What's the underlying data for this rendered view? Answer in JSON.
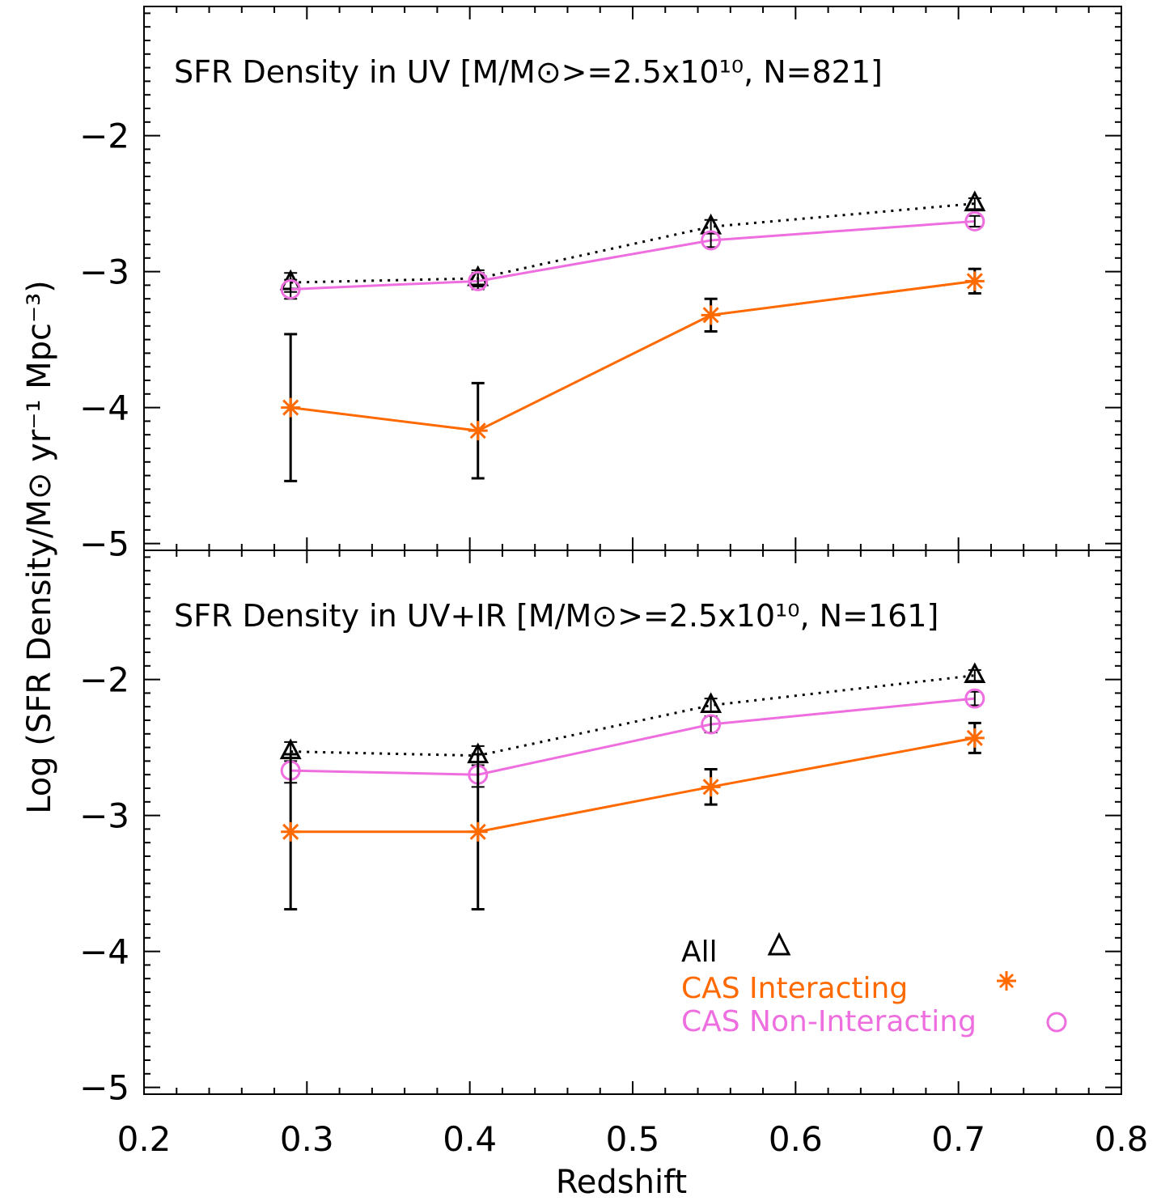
{
  "figure": {
    "xlabel": "Redshift",
    "ylabel": "Log (SFR Density/M⊙ yr⁻¹ Mpc⁻³)"
  },
  "legend": {
    "placement": "bottom-right of lower panel",
    "entries": [
      {
        "label": "All",
        "color": "#000000",
        "marker": "triangle-icon"
      },
      {
        "label": "CAS Interacting",
        "color": "#ff6a00",
        "marker": "asterisk-icon"
      },
      {
        "label": "CAS Non-Interacting",
        "color": "#ee6ee0",
        "marker": "circle-icon"
      }
    ]
  },
  "chart_data": [
    {
      "type": "line",
      "title": "SFR Density in UV [M/M⊙>=2.5x10¹⁰, N=821]",
      "xlabel": "Redshift",
      "ylabel": "Log (SFR Density/M⊙ yr⁻¹ Mpc⁻³)",
      "xlim": [
        0.2,
        0.8
      ],
      "ylim": [
        -5.05,
        -1.05
      ],
      "xticks": [
        "0.2",
        "0.3",
        "0.4",
        "0.5",
        "0.6",
        "0.7",
        "0.8"
      ],
      "yticks": [
        "-2",
        "-3",
        "-4",
        "-5"
      ],
      "x": [
        0.29,
        0.405,
        0.548,
        0.71
      ],
      "series": [
        {
          "name": "All",
          "color": "#000000",
          "style": "dotted",
          "marker": "triangle",
          "values": [
            -3.08,
            -3.05,
            -2.67,
            -2.5
          ],
          "err": [
            0.07,
            0.06,
            0.05,
            0.04
          ]
        },
        {
          "name": "CAS Non-Interacting",
          "color": "#ee6ee0",
          "style": "solid",
          "marker": "circle",
          "values": [
            -3.13,
            -3.07,
            -2.77,
            -2.63
          ],
          "err": [
            0.07,
            0.06,
            0.05,
            0.04
          ]
        },
        {
          "name": "CAS Interacting",
          "color": "#ff6a00",
          "style": "solid",
          "marker": "asterisk",
          "values": [
            -4.0,
            -4.17,
            -3.32,
            -3.07
          ],
          "err": [
            0.54,
            0.35,
            0.12,
            0.09
          ]
        }
      ]
    },
    {
      "type": "line",
      "title": "SFR Density in UV+IR [M/M⊙>=2.5x10¹⁰, N=161]",
      "xlabel": "Redshift",
      "ylabel": "Log (SFR Density/M⊙ yr⁻¹ Mpc⁻³)",
      "xlim": [
        0.2,
        0.8
      ],
      "ylim": [
        -5.05,
        -1.05
      ],
      "xticks": [
        "0.2",
        "0.3",
        "0.4",
        "0.5",
        "0.6",
        "0.7",
        "0.8"
      ],
      "yticks": [
        "-2",
        "-3",
        "-4",
        "-5"
      ],
      "x": [
        0.29,
        0.405,
        0.548,
        0.71
      ],
      "series": [
        {
          "name": "All",
          "color": "#000000",
          "style": "dotted",
          "marker": "triangle",
          "values": [
            -2.53,
            -2.56,
            -2.19,
            -1.97
          ],
          "err": [
            0.07,
            0.07,
            0.05,
            0.04
          ]
        },
        {
          "name": "CAS Non-Interacting",
          "color": "#ee6ee0",
          "style": "solid",
          "marker": "circle",
          "values": [
            -2.67,
            -2.7,
            -2.33,
            -2.14
          ],
          "err": [
            0.09,
            0.09,
            0.06,
            0.05
          ]
        },
        {
          "name": "CAS Interacting",
          "color": "#ff6a00",
          "style": "solid",
          "marker": "asterisk",
          "values": [
            -3.12,
            -3.12,
            -2.79,
            -2.43
          ],
          "err": [
            0.57,
            0.57,
            0.13,
            0.11
          ]
        }
      ]
    }
  ]
}
